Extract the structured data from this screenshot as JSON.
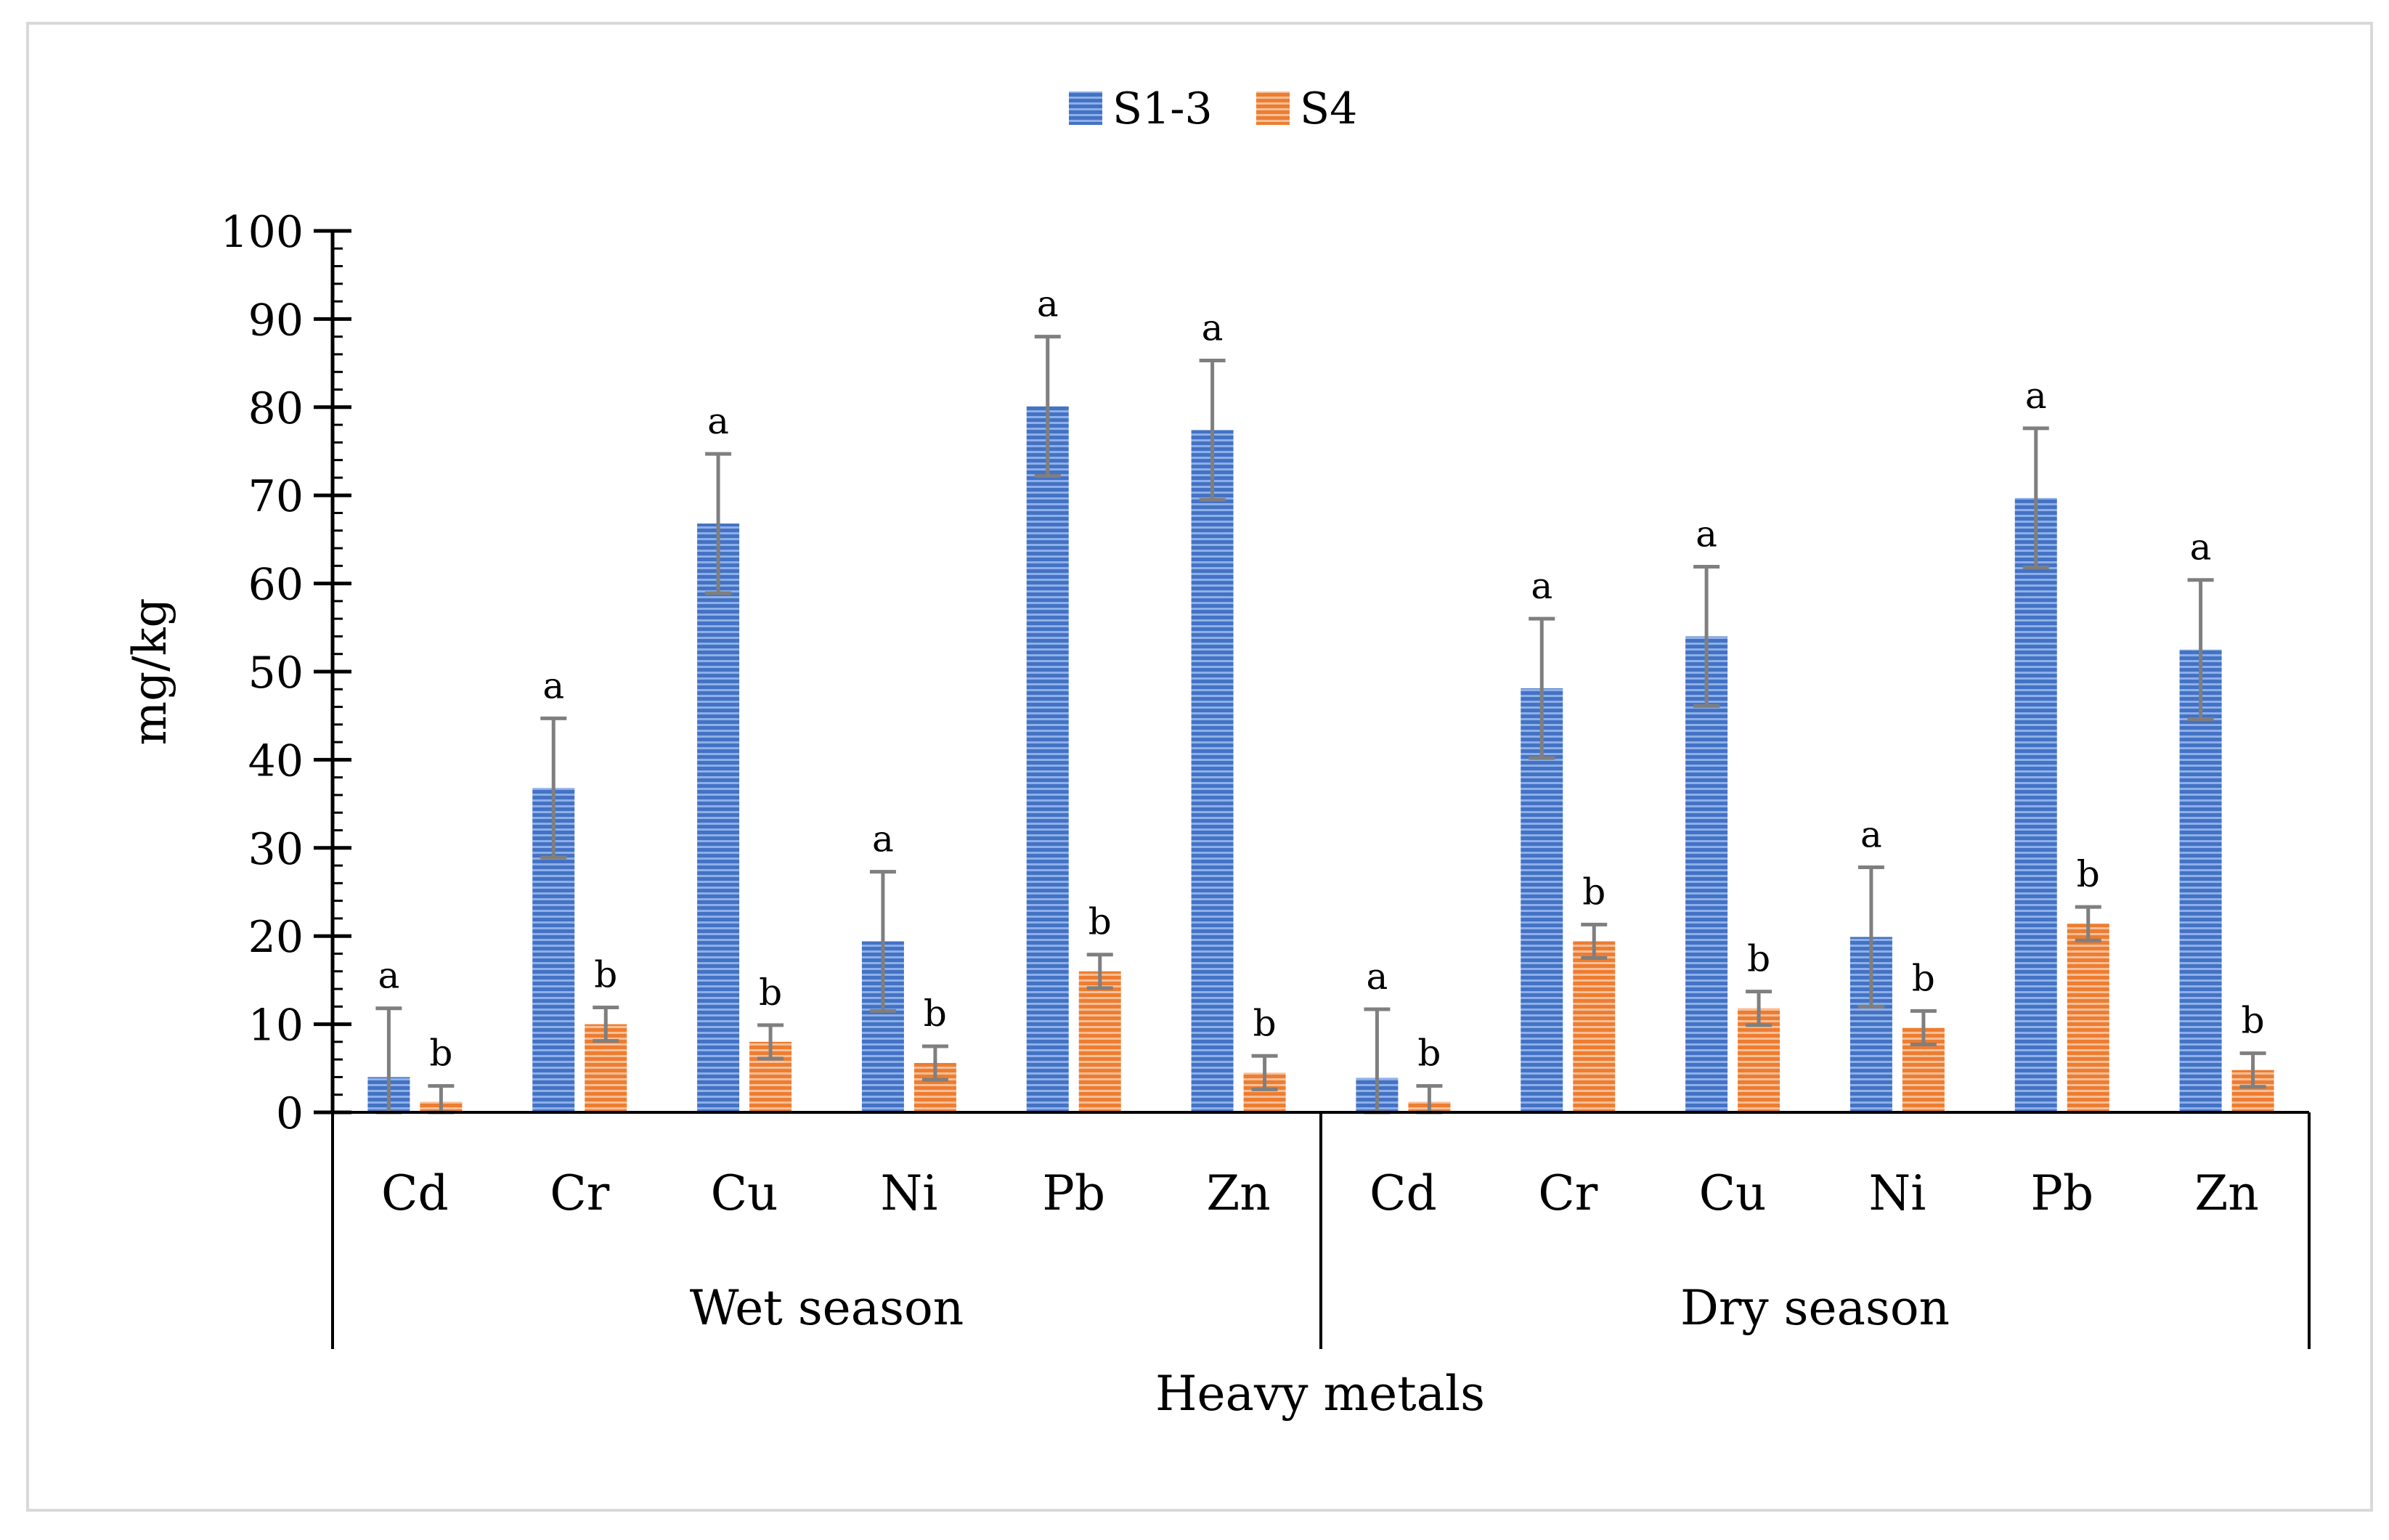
{
  "chart_data": {
    "type": "bar",
    "ylabel": "mg/kg",
    "xlabel": "Heavy metals",
    "ylim": [
      0,
      100
    ],
    "yticks": [
      0,
      10,
      20,
      30,
      40,
      50,
      60,
      70,
      80,
      90,
      100
    ],
    "legend_position": "top-center",
    "grid": false,
    "groups": [
      {
        "name": "Wet season",
        "categories": [
          "Cd",
          "Cr",
          "Cu",
          "Ni",
          "Pb",
          "Zn"
        ]
      },
      {
        "name": "Dry season",
        "categories": [
          "Cd",
          "Cr",
          "Cu",
          "Ni",
          "Pb",
          "Zn"
        ]
      }
    ],
    "series": [
      {
        "name": "S1-3",
        "color": "#4472C4",
        "values": [
          4,
          36.8,
          66.8,
          19.4,
          80.1,
          77.4,
          3.9,
          48.1,
          54,
          19.9,
          69.7,
          52.5
        ],
        "errors": [
          7.8,
          7.9,
          7.9,
          7.9,
          7.9,
          7.9,
          7.8,
          7.9,
          7.9,
          7.9,
          7.9,
          7.9
        ],
        "labels": [
          "a",
          "a",
          "a",
          "a",
          "a",
          "a",
          "a",
          "a",
          "a",
          "a",
          "a",
          "a"
        ]
      },
      {
        "name": "S4",
        "color": "#ED7D31",
        "values": [
          1.2,
          10,
          8,
          5.6,
          16,
          4.5,
          1.2,
          19.4,
          11.8,
          9.6,
          21.4,
          4.8
        ],
        "errors": [
          1.8,
          1.9,
          1.9,
          1.9,
          1.9,
          1.9,
          1.8,
          1.9,
          1.9,
          1.9,
          1.9,
          1.9
        ],
        "labels": [
          "b",
          "b",
          "b",
          "b",
          "b",
          "b",
          "b",
          "b",
          "b",
          "b",
          "b",
          "b"
        ]
      }
    ]
  }
}
